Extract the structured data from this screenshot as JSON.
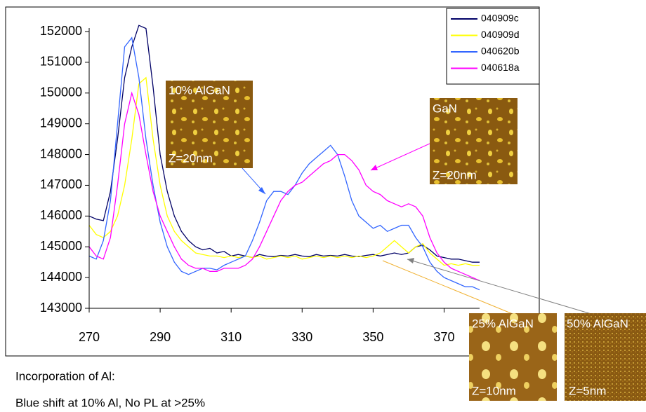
{
  "chart_data": {
    "type": "line",
    "x": [
      270,
      272,
      274,
      276,
      278,
      280,
      282,
      284,
      286,
      288,
      290,
      292,
      294,
      296,
      298,
      300,
      302,
      304,
      306,
      308,
      310,
      312,
      314,
      316,
      318,
      320,
      322,
      324,
      326,
      328,
      330,
      332,
      334,
      336,
      338,
      340,
      342,
      344,
      346,
      348,
      350,
      352,
      354,
      356,
      358,
      360,
      362,
      364,
      366,
      368,
      370,
      372,
      374,
      376,
      378,
      380
    ],
    "series": [
      {
        "name": "040909c",
        "color": "#000066",
        "values": [
          146000,
          145900,
          145850,
          146800,
          148500,
          150500,
          151500,
          152200,
          152100,
          150200,
          148000,
          146800,
          146000,
          145500,
          145200,
          145000,
          144900,
          144950,
          144800,
          144850,
          144700,
          144750,
          144700,
          144650,
          144750,
          144700,
          144680,
          144720,
          144700,
          144750,
          144700,
          144680,
          144750,
          144700,
          144720,
          144700,
          144750,
          144700,
          144680,
          144720,
          144750,
          144700,
          144750,
          144800,
          144750,
          144800,
          145000,
          145050,
          144900,
          144700,
          144650,
          144600,
          144600,
          144550,
          144500,
          144500
        ]
      },
      {
        "name": "040909d",
        "color": "#ffff00",
        "values": [
          145700,
          145400,
          145300,
          145500,
          146000,
          147000,
          148500,
          150300,
          150500,
          148500,
          147000,
          146000,
          145500,
          145200,
          145000,
          144800,
          144750,
          144700,
          144700,
          144650,
          144700,
          144650,
          144700,
          144650,
          144700,
          144600,
          144650,
          144700,
          144650,
          144700,
          144600,
          144650,
          144700,
          144650,
          144700,
          144650,
          144700,
          144650,
          144700,
          144650,
          144700,
          144800,
          145000,
          145200,
          145000,
          144800,
          145000,
          145100,
          144800,
          144600,
          144400,
          144450,
          144400,
          144450,
          144400,
          144400
        ]
      },
      {
        "name": "040620b",
        "color": "#3366ff",
        "values": [
          144700,
          144600,
          145200,
          146500,
          149000,
          151500,
          151800,
          150500,
          148500,
          147000,
          145800,
          145000,
          144500,
          144200,
          144100,
          144200,
          144300,
          144300,
          144250,
          144400,
          144500,
          144600,
          144700,
          145200,
          145800,
          146500,
          146800,
          146800,
          146700,
          147000,
          147400,
          147700,
          147900,
          148100,
          148300,
          148000,
          147300,
          146500,
          146000,
          145800,
          145600,
          145700,
          145500,
          145600,
          145700,
          145700,
          145300,
          145000,
          144500,
          144200,
          144000,
          143900,
          143800,
          143700,
          143700,
          143600
        ]
      },
      {
        "name": "040618a",
        "color": "#ff00ff",
        "values": [
          145000,
          144700,
          144600,
          145300,
          147000,
          149000,
          150000,
          149300,
          148000,
          146800,
          146000,
          145500,
          145000,
          144600,
          144400,
          144300,
          144300,
          144200,
          144200,
          144300,
          144300,
          144300,
          144400,
          144600,
          145000,
          145500,
          146000,
          146500,
          146800,
          147000,
          147100,
          147300,
          147500,
          147700,
          147800,
          148000,
          148000,
          147800,
          147500,
          147000,
          146800,
          146700,
          146500,
          146400,
          146300,
          146400,
          146300,
          146000,
          145300,
          144800,
          144500,
          144300,
          144200,
          144100,
          144000,
          143900
        ]
      }
    ],
    "xlim": [
      270,
      380
    ],
    "xticks": [
      270,
      290,
      310,
      330,
      350,
      370
    ],
    "ylim": [
      143000,
      152000
    ],
    "yticks": [
      143000,
      144000,
      145000,
      146000,
      147000,
      148000,
      149000,
      150000,
      151000,
      152000
    ],
    "grid": false,
    "legend": "top-right",
    "annotations": [
      {
        "title": "10% AlGaN",
        "scale": "Z=20nm"
      },
      {
        "title": "GaN",
        "scale": "Z=20nm"
      },
      {
        "title": "25% AlGaN",
        "scale": "Z=10nm"
      },
      {
        "title": "50% AlGaN",
        "scale": "Z=5nm"
      }
    ],
    "caption": [
      "Incorporation of Al:",
      "Blue shift at 10% Al, No PL at >25%"
    ]
  }
}
